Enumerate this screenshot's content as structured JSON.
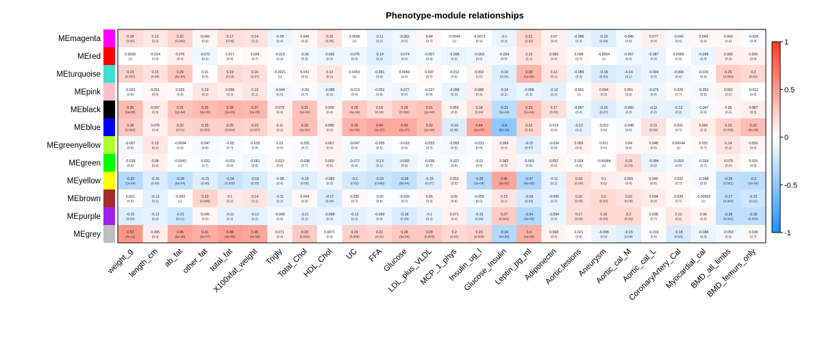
{
  "chart_data": {
    "type": "heatmap",
    "title": "Phenotype-module relationships",
    "rows": [
      "MEmagenta",
      "MEred",
      "MEturquoise",
      "MEpink",
      "MEblack",
      "MEblue",
      "MEgreenyellow",
      "MEgreen",
      "MEyellow",
      "MEbrown",
      "MEpurple",
      "MEgrey"
    ],
    "row_colors": [
      "#FF00FF",
      "#FF0000",
      "#40E0D0",
      "#FFC0CB",
      "#000000",
      "#0000FF",
      "#ADFF2F",
      "#00FF00",
      "#FFFF00",
      "#A52A2A",
      "#A020F0",
      "#BEBEBE"
    ],
    "columns": [
      "weight_g",
      "length_cm",
      "ab_fat",
      "other_fat",
      "total_fat",
      "X100xfat_weight",
      "Trigly",
      "Total_Chol",
      "HDL_Chol",
      "UC",
      "FFA",
      "Glucose",
      "LDL_plus_VLDL",
      "MCP_1_phys",
      "Insulin_ug_l",
      "Glucose_Insulin",
      "Leptin_pg_ml",
      "Adiponectin",
      "Aortic.lesions",
      "Aneurysm",
      "Aortic_cal_M",
      "Aortic_cal_L",
      "CoronaryArtery_Cal",
      "Myocardial_cal",
      "BMD_all_limbs",
      "BMD_femurs_only"
    ],
    "values": [
      [
        "0.18",
        "0.12",
        "0.22",
        "0.049",
        "0.17",
        "0.14",
        "-0.08",
        "0.045",
        "0.15",
        "0.0036",
        "-0.11",
        "-0.062",
        "0.04",
        "-0.0044",
        "-0.0073",
        "-0.1",
        "0.21",
        "0.07",
        "-0.086",
        "-0.15",
        "-0.045",
        "0.077",
        "-0.043",
        "0.043",
        "0.043",
        "-0.028"
      ],
      [
        "0.0028",
        "-0.014",
        "0.076",
        "-0.072",
        "0.017",
        "0.034",
        "-0.013",
        "-0.06",
        "-0.082",
        "-0.076",
        "-0.14",
        "-0.074",
        "-0.057",
        "-0.098",
        "-0.063",
        "-0.054",
        "0.15",
        "0.083",
        "0.038",
        "-0.0054",
        "-0.067",
        "-0.087",
        "0.0093",
        "-0.098",
        "0.083",
        "0.066"
      ],
      [
        "0.23",
        "0.15",
        "0.29",
        "0.01",
        "0.19",
        "0.16",
        "-0.0021",
        "0.041",
        "0.13",
        "0.0053",
        "-0.081",
        "0.0066",
        "0.037",
        "-0.012",
        "0.063",
        "-0.16",
        "0.38",
        "0.13",
        "-0.089",
        "-0.18",
        "-0.14",
        "-0.094",
        "-0.068",
        "-0.026",
        "0.25",
        "0.2"
      ],
      [
        "-0.021",
        "0.051",
        "0.025",
        "0.13",
        "0.088",
        "0.13",
        "-0.044",
        "-0.03",
        "-0.085",
        "-0.019",
        "-0.051",
        "-0.077",
        "-0.027",
        "-0.098",
        "0.088",
        "-0.14",
        "-0.088",
        "-0.12",
        "-0.001",
        "0.094",
        "0.051",
        "-0.079",
        "0.029",
        "-0.053",
        "0.062",
        "-0.012"
      ],
      [
        "0.35",
        "0.097",
        "0.31",
        "0.35",
        "0.38",
        "0.37",
        "0.079",
        "0.31",
        "0.068",
        "0.28",
        "0.18",
        "0.28",
        "0.31",
        "0.055",
        "0.18",
        "-0.31",
        "0.33",
        "0.17",
        "-0.067",
        "-0.16",
        "-0.083",
        "-0.11",
        "-0.12",
        "-0.047",
        "0.05",
        "0.087"
      ],
      [
        "0.28",
        "0.076",
        "0.22",
        "0.25",
        "0.25",
        "0.23",
        "0.11",
        "0.32",
        "0.085",
        "0.39",
        "0.44",
        "0.43",
        "0.32",
        "-0.16",
        "0.44",
        "-0.5",
        "0.22",
        "0.014",
        "-0.12",
        "-0.011",
        "-0.048",
        "0.15",
        "0.031",
        "0.092",
        "0.23",
        "0.33"
      ],
      [
        "-0.057",
        "0.13",
        "-0.0094",
        "-0.047",
        "-0.03",
        "-0.015",
        "0.01",
        "-0.031",
        "0.067",
        "-0.047",
        "-0.055",
        "-0.018",
        "-0.033",
        "-0.062",
        "-0.021",
        "0.069",
        "-0.15",
        "-0.024",
        "0.065",
        "0.011",
        "0.04",
        "0.048",
        "0.00044",
        "0.031",
        "0.14",
        "0.059"
      ],
      [
        "-0.018",
        "0.08",
        "-0.0043",
        "-0.031",
        "-0.015",
        "-0.061",
        "0.022",
        "-0.038",
        "0.052",
        "-0.072",
        "-0.13",
        "-0.093",
        "-0.038",
        "-0.027",
        "-0.01",
        "0.082",
        "-0.063",
        "0.052",
        "0.018",
        "-0.00084",
        "0.19",
        "-0.094",
        "-0.053",
        "-0.034",
        "0.079",
        "0.015"
      ],
      [
        "-0.32",
        "-0.16",
        "-0.28",
        "-0.15",
        "-0.24",
        "-0.18",
        "-0.08",
        "-0.16",
        "-0.082",
        "-0.2",
        "-0.23",
        "-0.28",
        "-0.16",
        "0.052",
        "-0.33",
        "0.45",
        "-0.37",
        "-0.11",
        "0.18",
        "0.1",
        "0.065",
        "0.049",
        "0.032",
        "-0.048",
        "-0.28",
        "-0.3"
      ],
      [
        "0.021",
        "-0.13",
        "-0.003",
        "0.23",
        "0.1",
        "0.14",
        "-0.11",
        "0.044",
        "-0.17",
        "0.035",
        "-0.02",
        "-0.029",
        "0.05",
        "0.05",
        "-0.055",
        "0.13",
        "-0.19",
        "-0.095",
        "0.16",
        "0.2",
        "0.15",
        "0.094",
        "0.039",
        "-0.00093",
        "-0.27",
        "-0.22"
      ],
      [
        "-0.15",
        "-0.12",
        "-0.21",
        "0.045",
        "-0.11",
        "-0.12",
        "-0.049",
        "-0.11",
        "-0.098",
        "-0.12",
        "-0.083",
        "-0.18",
        "-0.1",
        "0.071",
        "-0.15",
        "0.27",
        "-0.34",
        "-0.094",
        "0.17",
        "0.19",
        "0.2",
        "0.028",
        "0.12",
        "0.06",
        "-0.28",
        "-0.28"
      ],
      [
        "0.53",
        "0.095",
        "0.45",
        "0.41",
        "0.48",
        "0.45",
        "0.071",
        "0.28",
        "0.0071",
        "0.24",
        "0.22",
        "0.28",
        "0.28",
        "0.2",
        "0.23",
        "-0.34",
        "0.4",
        "0.068",
        "0.021",
        "-0.098",
        "-0.15",
        "-0.016",
        "-0.18",
        "-0.088",
        "-0.053",
        "0.038"
      ]
    ],
    "pvalues": [
      [
        "(0.06)",
        "(0.2)",
        "(0.009)",
        "(0.6)",
        "(0.06)",
        "(0.1)",
        "(0.4)",
        "(0.6)",
        "(0.08)",
        "(1)",
        "(0.2)",
        "(0.5)",
        "(0.7)",
        "(1)",
        "(0.9)",
        "(0.3)",
        "(0.02)",
        "(0.4)",
        "(0.3)",
        "(0.09)",
        "(0.6)",
        "(0.4)",
        "(0.6)",
        "(0.6)",
        "(0.6)",
        "(0.8)"
      ],
      [
        "(1)",
        "(0.9)",
        "(0.4)",
        "(0.4)",
        "(0.8)",
        "(0.7)",
        "(0.9)",
        "(0.5)",
        "(0.3)",
        "(0.4)",
        "(0.1)",
        "(0.4)",
        "(0.5)",
        "(0.3)",
        "(0.5)",
        "(0.5)",
        "(0.1)",
        "(0.4)",
        "(0.7)",
        "(1)",
        "(0.4)",
        "(0.3)",
        "(0.9)",
        "(0.3)",
        "(0.3)",
        "(0.5)"
      ],
      [
        "(0.007)",
        "(0.09)",
        "(8e-04)",
        "(0.9)",
        "(0.03)",
        "(0.07)",
        "(1)",
        "(0.6)",
        "(0.1)",
        "(1)",
        "(0.4)",
        "(0.9)",
        "(0.7)",
        "(0.9)",
        "(0.5)",
        "(0.04)",
        "(1e-05)",
        "(0.1)",
        "(0.3)",
        "(0.03)",
        "(0.1)",
        "(0.3)",
        "(0.4)",
        "(0.8)",
        "(0.004)",
        "(0.02)"
      ],
      [
        "(0.8)",
        "(0.6)",
        "(0.8)",
        "(0.1)",
        "(0.3)",
        "(0.1)",
        "(0.6)",
        "(0.7)",
        "(0.3)",
        "(0.8)",
        "(0.6)",
        "(0.4)",
        "(0.8)",
        "(0.3)",
        "(0.3)",
        "(0.1)",
        "(0.3)",
        "(0.2)",
        "(1)",
        "(0.3)",
        "(0.6)",
        "(0.4)",
        "(0.7)",
        "(0.5)",
        "(0.5)",
        "(0.9)"
      ],
      [
        "(3e-05)",
        "(0.3)",
        "(2e-04)",
        "(3e-05)",
        "(2e-05)",
        "(1e-05)",
        "(0.4)",
        "(2e-04)",
        "(0.4)",
        "(4e-04)",
        "(0.04)",
        "(0.001)",
        "(2e-04)",
        "(0.5)",
        "(0.04)",
        "(3e-04)",
        "(1e-04)",
        "(0.05)",
        "(0.4)",
        "(0.07)",
        "(0.3)",
        "(0.2)",
        "(0.2)",
        "(0.6)",
        "(0.6)",
        "(0.3)"
      ],
      [
        "(0.002)",
        "(0.4)",
        "(0.01)",
        "(0.003)",
        "(0.004)",
        "(0.007)",
        "(0.2)",
        "(2e-04)",
        "(0.3)",
        "(4e-06)",
        "(1e-07)",
        "(2e-07)",
        "(2e-04)",
        "(0.06)",
        "(1e-07)",
        "(5e-10)",
        "(0.01)",
        "(0.9)",
        "(0.2)",
        "(0.9)",
        "(0.6)",
        "(0.09)",
        "(0.7)",
        "(0.3)",
        "(0.009)",
        "(8e-05)"
      ],
      [
        "(0.5)",
        "(0.1)",
        "(0.9)",
        "(0.6)",
        "(0.7)",
        "(0.9)",
        "(0.9)",
        "(0.7)",
        "(0.4)",
        "(0.6)",
        "(0.5)",
        "(0.8)",
        "(0.7)",
        "(0.5)",
        "(0.8)",
        "(0.4)",
        "(0.07)",
        "(0.8)",
        "(0.5)",
        "(0.9)",
        "(0.6)",
        "(0.6)",
        "(1)",
        "(0.7)",
        "(0.1)",
        "(0.5)"
      ],
      [
        "(0.8)",
        "(0.4)",
        "(1)",
        "(0.7)",
        "(0.9)",
        "(0.5)",
        "(0.8)",
        "(0.7)",
        "(0.5)",
        "(0.4)",
        "(0.1)",
        "(0.3)",
        "(0.7)",
        "(0.8)",
        "(0.9)",
        "(0.3)",
        "(0.5)",
        "(0.6)",
        "(0.8)",
        "(1)",
        "(0.03)",
        "(0.3)",
        "(0.5)",
        "(0.7)",
        "(0.4)",
        "(0.9)"
      ],
      [
        "(1e-04)",
        "(0.06)",
        "(8e-04)",
        "(0.08)",
        "(0.005)",
        "(0.03)",
        "(0.4)",
        "(0.06)",
        "(0.3)",
        "(0.02)",
        "(0.006)",
        "(8e-04)",
        "(0.07)",
        "(0.5)",
        "(1e-04)",
        "(8e-08)",
        "(8e-06)",
        "(0.2)",
        "(0.04)",
        "(0.2)",
        "(0.4)",
        "(0.6)",
        "(0.7)",
        "(0.6)",
        "(0.001)",
        "(3e-04)"
      ],
      [
        "(0.8)",
        "(0.1)",
        "(1)",
        "(0.009)",
        "(0.2)",
        "(0.1)",
        "(0.2)",
        "(0.6)",
        "(0.04)",
        "(0.7)",
        "(0.8)",
        "(0.7)",
        "(0.6)",
        "(0.6)",
        "(0.5)",
        "(0.1)",
        "(0.03)",
        "(0.3)",
        "(0.06)",
        "(0.02)",
        "(0.09)",
        "(0.3)",
        "(0.7)",
        "(1)",
        "(0.002)",
        "(0.01)"
      ],
      [
        "(0.09)",
        "(0.2)",
        "(0.01)",
        "(0.6)",
        "(0.2)",
        "(0.2)",
        "(0.6)",
        "(0.2)",
        "(0.3)",
        "(0.2)",
        "(0.3)",
        "(0.04)",
        "(0.2)",
        "(0.4)",
        "(0.09)",
        "(0.001)",
        "(3e-05)",
        "(0.3)",
        "(0.06)",
        "(0.03)",
        "(0.02)",
        "(0.7)",
        "(0.2)",
        "(0.5)",
        "(0.001)",
        "(0.001)"
      ],
      [
        "(4e-11)",
        "(0.3)",
        "(8e-08)",
        "(8e-07)",
        "(3e-09)",
        "(4e-08)",
        "(0.4)",
        "(0.003)",
        "(0.9)",
        "(0.006)",
        "(0.01)",
        "(8e-04)",
        "(0.003)",
        "(0.02)",
        "(0.008)",
        "(4e-05)",
        "(2e-06)",
        "(0.4)",
        "(0.8)",
        "(0.3)",
        "(0.08)",
        "(0.9)",
        "(0.04)",
        "(0.3)",
        "(0.5)",
        "(0.7)"
      ]
    ],
    "legend": {
      "ticks": [
        "1",
        "0.5",
        "0",
        "-0.5",
        "-1"
      ],
      "tick_values": [
        1,
        0.5,
        0,
        -0.5,
        -1
      ],
      "range": [
        -1,
        1
      ]
    },
    "colors": {
      "negative": "#1E90FF",
      "neutral": "#FFFFFF",
      "positive": "#FF3A20"
    }
  }
}
